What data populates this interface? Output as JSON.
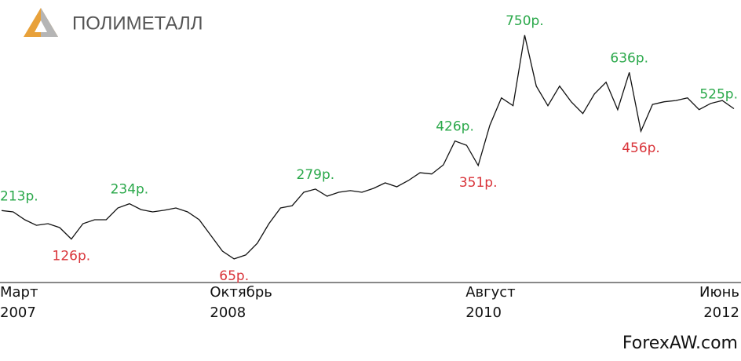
{
  "logo": {
    "text": "ПОЛИМЕТАЛЛ"
  },
  "watermark": "ForexAW.com",
  "chart_data": {
    "type": "line",
    "x": [
      "2007-03",
      "2007-04",
      "2007-05",
      "2007-06",
      "2007-07",
      "2007-08",
      "2007-09",
      "2007-10",
      "2007-11",
      "2007-12",
      "2008-01",
      "2008-02",
      "2008-03",
      "2008-04",
      "2008-05",
      "2008-06",
      "2008-07",
      "2008-08",
      "2008-09",
      "2008-10",
      "2008-11",
      "2008-12",
      "2009-01",
      "2009-02",
      "2009-03",
      "2009-04",
      "2009-05",
      "2009-06",
      "2009-07",
      "2009-08",
      "2009-09",
      "2009-10",
      "2009-11",
      "2009-12",
      "2010-01",
      "2010-02",
      "2010-03",
      "2010-04",
      "2010-05",
      "2010-06",
      "2010-07",
      "2010-08",
      "2010-09",
      "2010-10",
      "2010-11",
      "2010-12",
      "2011-01",
      "2011-02",
      "2011-03",
      "2011-04",
      "2011-05",
      "2011-06",
      "2011-07",
      "2011-08",
      "2011-09",
      "2011-10",
      "2011-11",
      "2011-12",
      "2012-01",
      "2012-02",
      "2012-03",
      "2012-04",
      "2012-05",
      "2012-06"
    ],
    "series": [
      {
        "color": "#111111",
        "values": [
          213,
          209,
          185,
          168,
          173,
          161,
          126,
          173,
          185,
          185,
          221,
          234,
          216,
          209,
          214,
          221,
          209,
          185,
          137,
          89,
          65,
          77,
          113,
          173,
          221,
          228,
          269,
          279,
          257,
          269,
          274,
          269,
          281,
          298,
          286,
          305,
          329,
          325,
          353,
          426,
          413,
          351,
          474,
          558,
          534,
          750,
          594,
          534,
          594,
          546,
          510,
          570,
          606,
          522,
          636,
          456,
          538,
          546,
          550,
          558,
          522,
          541,
          550,
          525
        ],
        "value_labels": [
          "213р.",
          null,
          null,
          null,
          null,
          null,
          "126р.",
          null,
          null,
          null,
          null,
          "234р.",
          null,
          null,
          null,
          null,
          null,
          null,
          null,
          null,
          "65р.",
          null,
          null,
          null,
          null,
          null,
          null,
          "279р.",
          null,
          null,
          null,
          null,
          null,
          null,
          null,
          null,
          null,
          null,
          null,
          "426р.",
          null,
          "351р.",
          null,
          null,
          null,
          "750р.",
          null,
          null,
          null,
          null,
          null,
          null,
          null,
          null,
          "636р.",
          "456р.",
          null,
          null,
          null,
          null,
          null,
          null,
          null,
          "525р."
        ],
        "value_label_colors": [
          "#2aa84a",
          null,
          null,
          null,
          null,
          null,
          "#d9343a",
          null,
          null,
          null,
          null,
          "#2aa84a",
          null,
          null,
          null,
          null,
          null,
          null,
          null,
          null,
          "#d9343a",
          null,
          null,
          null,
          null,
          null,
          null,
          "#2aa84a",
          null,
          null,
          null,
          null,
          null,
          null,
          null,
          null,
          null,
          null,
          null,
          "#2aa84a",
          null,
          "#d9343a",
          null,
          null,
          null,
          "#2aa84a",
          null,
          null,
          null,
          null,
          null,
          null,
          null,
          null,
          "#2aa84a",
          "#d9343a",
          null,
          null,
          null,
          null,
          null,
          null,
          null,
          "#2aa84a"
        ]
      }
    ],
    "ylim": [
      0,
      800
    ],
    "xticks": [
      {
        "value": "2007-03",
        "label": "Март",
        "sublabel": "2007"
      },
      {
        "value": "2008-10",
        "label": "Октябрь",
        "sublabel": "2008"
      },
      {
        "value": "2010-08",
        "label": "Август",
        "sublabel": "2010"
      },
      {
        "value": "2012-06",
        "label": "Июнь",
        "sublabel": "2012"
      }
    ]
  }
}
